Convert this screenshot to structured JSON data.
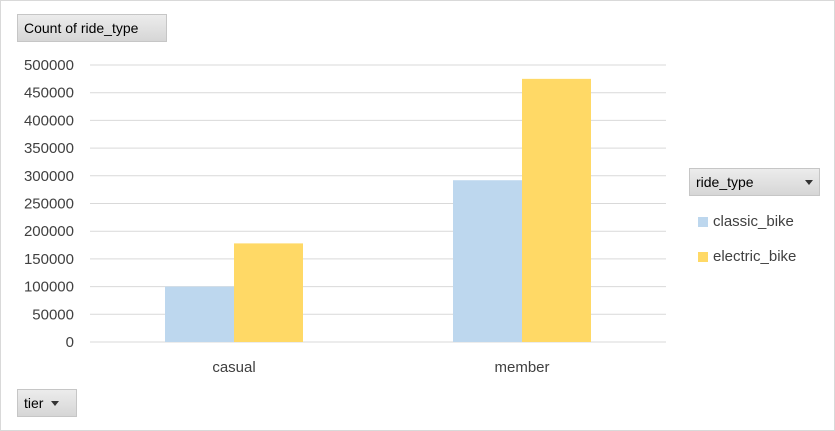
{
  "values_field_button": {
    "label": "Count of ride_type"
  },
  "axis_field_button": {
    "label": "tier"
  },
  "legend_field_button": {
    "label": "ride_type"
  },
  "colors": {
    "classic_bike": "#bdd7ee",
    "electric_bike": "#ffd966",
    "gridline": "#d9d9d9",
    "text": "#404040"
  },
  "chart_data": {
    "type": "bar",
    "categories": [
      "casual",
      "member"
    ],
    "series": [
      {
        "name": "classic_bike",
        "values": [
          100000,
          292000
        ]
      },
      {
        "name": "electric_bike",
        "values": [
          178000,
          475000
        ]
      }
    ],
    "y_ticks": [
      "0",
      "50000",
      "100000",
      "150000",
      "200000",
      "250000",
      "300000",
      "350000",
      "400000",
      "450000",
      "500000"
    ],
    "ylim": [
      0,
      500000
    ],
    "grid": true,
    "legend_position": "right"
  }
}
